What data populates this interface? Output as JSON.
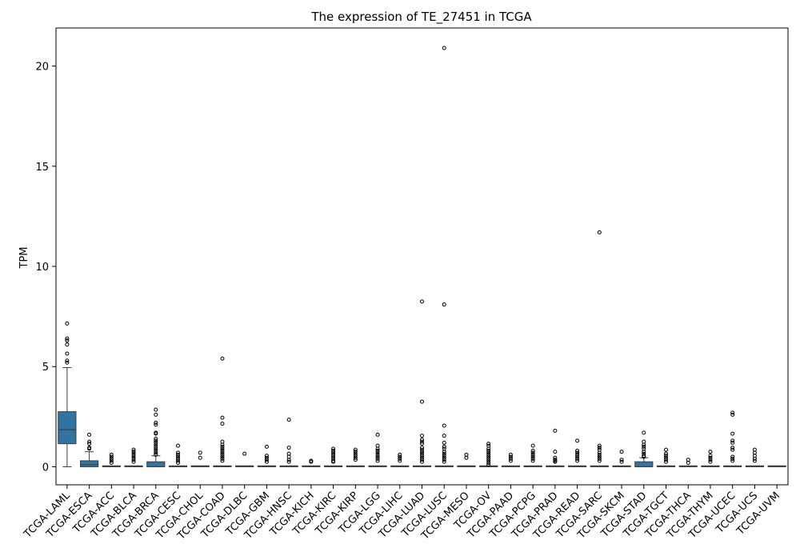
{
  "chart_data": {
    "type": "box",
    "title": "The expression of TE_27451 in TCGA",
    "xlabel": "",
    "ylabel": "TPM",
    "ylim": [
      -0.9,
      21.9
    ],
    "yticks": [
      0,
      5,
      10,
      15,
      20
    ],
    "grid": false,
    "legend": "none",
    "box_color": "#3274a1",
    "categories": [
      "TCGA-LAML",
      "TCGA-ESCA",
      "TCGA-ACC",
      "TCGA-BLCA",
      "TCGA-BRCA",
      "TCGA-CESC",
      "TCGA-CHOL",
      "TCGA-COAD",
      "TCGA-DLBC",
      "TCGA-GBM",
      "TCGA-HNSC",
      "TCGA-KICH",
      "TCGA-KIRC",
      "TCGA-KIRP",
      "TCGA-LGG",
      "TCGA-LIHC",
      "TCGA-LUAD",
      "TCGA-LUSC",
      "TCGA-MESO",
      "TCGA-OV",
      "TCGA-PAAD",
      "TCGA-PCPG",
      "TCGA-PRAD",
      "TCGA-READ",
      "TCGA-SARC",
      "TCGA-SKCM",
      "TCGA-STAD",
      "TCGA-TGCT",
      "TCGA-THCA",
      "TCGA-THYM",
      "TCGA-UCEC",
      "TCGA-UCS",
      "TCGA-UVM"
    ],
    "boxes": [
      {
        "q1": 1.15,
        "median": 1.85,
        "q3": 2.75,
        "whisker_low": 0,
        "whisker_high": 4.95,
        "outliers": [
          7.15,
          6.4,
          6.3,
          6.1,
          5.65,
          5.3,
          5.2
        ]
      },
      {
        "q1": 0.0,
        "median": 0.1,
        "q3": 0.3,
        "whisker_low": 0,
        "whisker_high": 0.75,
        "outliers": [
          1.6,
          1.25,
          1.15,
          0.95,
          0.9
        ]
      },
      {
        "q1": 0,
        "median": 0,
        "q3": 0,
        "whisker_low": 0,
        "whisker_high": 0,
        "outliers": [
          0.6,
          0.5,
          0.4,
          0.3,
          0.2
        ]
      },
      {
        "q1": 0,
        "median": 0,
        "q3": 0,
        "whisker_low": 0,
        "whisker_high": 0,
        "outliers": [
          0.85,
          0.75,
          0.65,
          0.55,
          0.45,
          0.35,
          0.25
        ]
      },
      {
        "q1": 0.0,
        "median": 0.0,
        "q3": 0.25,
        "whisker_low": 0,
        "whisker_high": 0.55,
        "outliers": [
          2.85,
          2.6,
          2.2,
          2.1,
          1.7,
          1.65,
          1.4,
          1.3,
          1.2,
          1.1,
          1.0,
          0.9,
          0.8,
          0.7,
          0.6
        ]
      },
      {
        "q1": 0,
        "median": 0,
        "q3": 0,
        "whisker_low": 0,
        "whisker_high": 0,
        "outliers": [
          1.05,
          0.7,
          0.6,
          0.5,
          0.4,
          0.3,
          0.2
        ]
      },
      {
        "q1": 0,
        "median": 0,
        "q3": 0,
        "whisker_low": 0,
        "whisker_high": 0,
        "outliers": [
          0.7,
          0.45
        ]
      },
      {
        "q1": 0,
        "median": 0,
        "q3": 0,
        "whisker_low": 0,
        "whisker_high": 0,
        "outliers": [
          5.4,
          2.45,
          2.15,
          1.25,
          1.1,
          1.0,
          0.9,
          0.8,
          0.7,
          0.6,
          0.5,
          0.4,
          0.3
        ]
      },
      {
        "q1": 0,
        "median": 0,
        "q3": 0,
        "whisker_low": 0,
        "whisker_high": 0,
        "outliers": [
          0.65
        ]
      },
      {
        "q1": 0,
        "median": 0,
        "q3": 0,
        "whisker_low": 0,
        "whisker_high": 0,
        "outliers": [
          1.0,
          0.55,
          0.45,
          0.35,
          0.25
        ]
      },
      {
        "q1": 0,
        "median": 0,
        "q3": 0,
        "whisker_low": 0,
        "whisker_high": 0,
        "outliers": [
          2.35,
          0.95,
          0.65,
          0.5,
          0.35,
          0.25
        ]
      },
      {
        "q1": 0,
        "median": 0,
        "q3": 0,
        "whisker_low": 0,
        "whisker_high": 0,
        "outliers": [
          0.3,
          0.25
        ]
      },
      {
        "q1": 0,
        "median": 0,
        "q3": 0,
        "whisker_low": 0,
        "whisker_high": 0,
        "outliers": [
          0.9,
          0.8,
          0.7,
          0.6,
          0.5,
          0.4,
          0.3,
          0.25
        ]
      },
      {
        "q1": 0,
        "median": 0,
        "q3": 0,
        "whisker_low": 0,
        "whisker_high": 0,
        "outliers": [
          0.85,
          0.75,
          0.65,
          0.55,
          0.45,
          0.35
        ]
      },
      {
        "q1": 0,
        "median": 0,
        "q3": 0,
        "whisker_low": 0,
        "whisker_high": 0,
        "outliers": [
          1.6,
          1.05,
          0.9,
          0.8,
          0.7,
          0.6,
          0.5,
          0.4,
          0.3
        ]
      },
      {
        "q1": 0,
        "median": 0,
        "q3": 0,
        "whisker_low": 0,
        "whisker_high": 0,
        "outliers": [
          0.6,
          0.5,
          0.4,
          0.3
        ]
      },
      {
        "q1": 0,
        "median": 0,
        "q3": 0,
        "whisker_low": 0,
        "whisker_high": 0,
        "outliers": [
          8.25,
          3.25,
          1.55,
          1.35,
          1.25,
          1.15,
          0.95,
          0.85,
          0.75,
          0.65,
          0.55,
          0.45,
          0.35,
          0.25
        ]
      },
      {
        "q1": 0,
        "median": 0,
        "q3": 0,
        "whisker_low": 0,
        "whisker_high": 0,
        "outliers": [
          20.9,
          8.1,
          2.05,
          1.55,
          1.2,
          1.0,
          0.9,
          0.75,
          0.65,
          0.55,
          0.45,
          0.35,
          0.25
        ]
      },
      {
        "q1": 0,
        "median": 0,
        "q3": 0,
        "whisker_low": 0,
        "whisker_high": 0,
        "outliers": [
          0.6,
          0.45
        ]
      },
      {
        "q1": 0,
        "median": 0,
        "q3": 0,
        "whisker_low": 0,
        "whisker_high": 0,
        "outliers": [
          1.15,
          1.05,
          0.9,
          0.8,
          0.7,
          0.6,
          0.5,
          0.4,
          0.3,
          0.2,
          0.1
        ]
      },
      {
        "q1": 0,
        "median": 0,
        "q3": 0,
        "whisker_low": 0,
        "whisker_high": 0,
        "outliers": [
          0.6,
          0.5,
          0.4,
          0.3
        ]
      },
      {
        "q1": 0,
        "median": 0,
        "q3": 0,
        "whisker_low": 0,
        "whisker_high": 0,
        "outliers": [
          1.05,
          0.8,
          0.7,
          0.6,
          0.5,
          0.4,
          0.3
        ]
      },
      {
        "q1": 0,
        "median": 0,
        "q3": 0,
        "whisker_low": 0,
        "whisker_high": 0,
        "outliers": [
          1.8,
          0.75,
          0.45,
          0.35,
          0.3,
          0.25
        ]
      },
      {
        "q1": 0,
        "median": 0,
        "q3": 0,
        "whisker_low": 0,
        "whisker_high": 0,
        "outliers": [
          1.3,
          0.8,
          0.7,
          0.6,
          0.5,
          0.4,
          0.3
        ]
      },
      {
        "q1": 0,
        "median": 0,
        "q3": 0,
        "whisker_low": 0,
        "whisker_high": 0,
        "outliers": [
          11.7,
          1.05,
          0.95,
          0.85,
          0.7,
          0.6,
          0.5,
          0.4,
          0.3
        ]
      },
      {
        "q1": 0,
        "median": 0,
        "q3": 0,
        "whisker_low": 0,
        "whisker_high": 0,
        "outliers": [
          0.75,
          0.35,
          0.25
        ]
      },
      {
        "q1": 0.0,
        "median": 0.0,
        "q3": 0.25,
        "whisker_low": 0,
        "whisker_high": 0.45,
        "outliers": [
          1.7,
          1.25,
          1.1,
          1.0,
          0.9,
          0.75,
          0.65,
          0.55,
          0.5
        ]
      },
      {
        "q1": 0,
        "median": 0,
        "q3": 0,
        "whisker_low": 0,
        "whisker_high": 0,
        "outliers": [
          0.85,
          0.65,
          0.55,
          0.45,
          0.35,
          0.25
        ]
      },
      {
        "q1": 0,
        "median": 0,
        "q3": 0,
        "whisker_low": 0,
        "whisker_high": 0,
        "outliers": [
          0.35,
          0.2
        ]
      },
      {
        "q1": 0,
        "median": 0,
        "q3": 0,
        "whisker_low": 0,
        "whisker_high": 0,
        "outliers": [
          0.75,
          0.55,
          0.45,
          0.35,
          0.25
        ]
      },
      {
        "q1": 0,
        "median": 0,
        "q3": 0,
        "whisker_low": 0,
        "whisker_high": 0,
        "outliers": [
          2.7,
          2.6,
          1.65,
          1.3,
          1.2,
          0.95,
          0.85,
          0.5,
          0.4,
          0.3
        ]
      },
      {
        "q1": 0,
        "median": 0,
        "q3": 0,
        "whisker_low": 0,
        "whisker_high": 0,
        "outliers": [
          0.85,
          0.7,
          0.55,
          0.4,
          0.3
        ]
      },
      {
        "q1": 0,
        "median": 0,
        "q3": 0,
        "whisker_low": 0,
        "whisker_high": 0,
        "outliers": []
      }
    ]
  }
}
